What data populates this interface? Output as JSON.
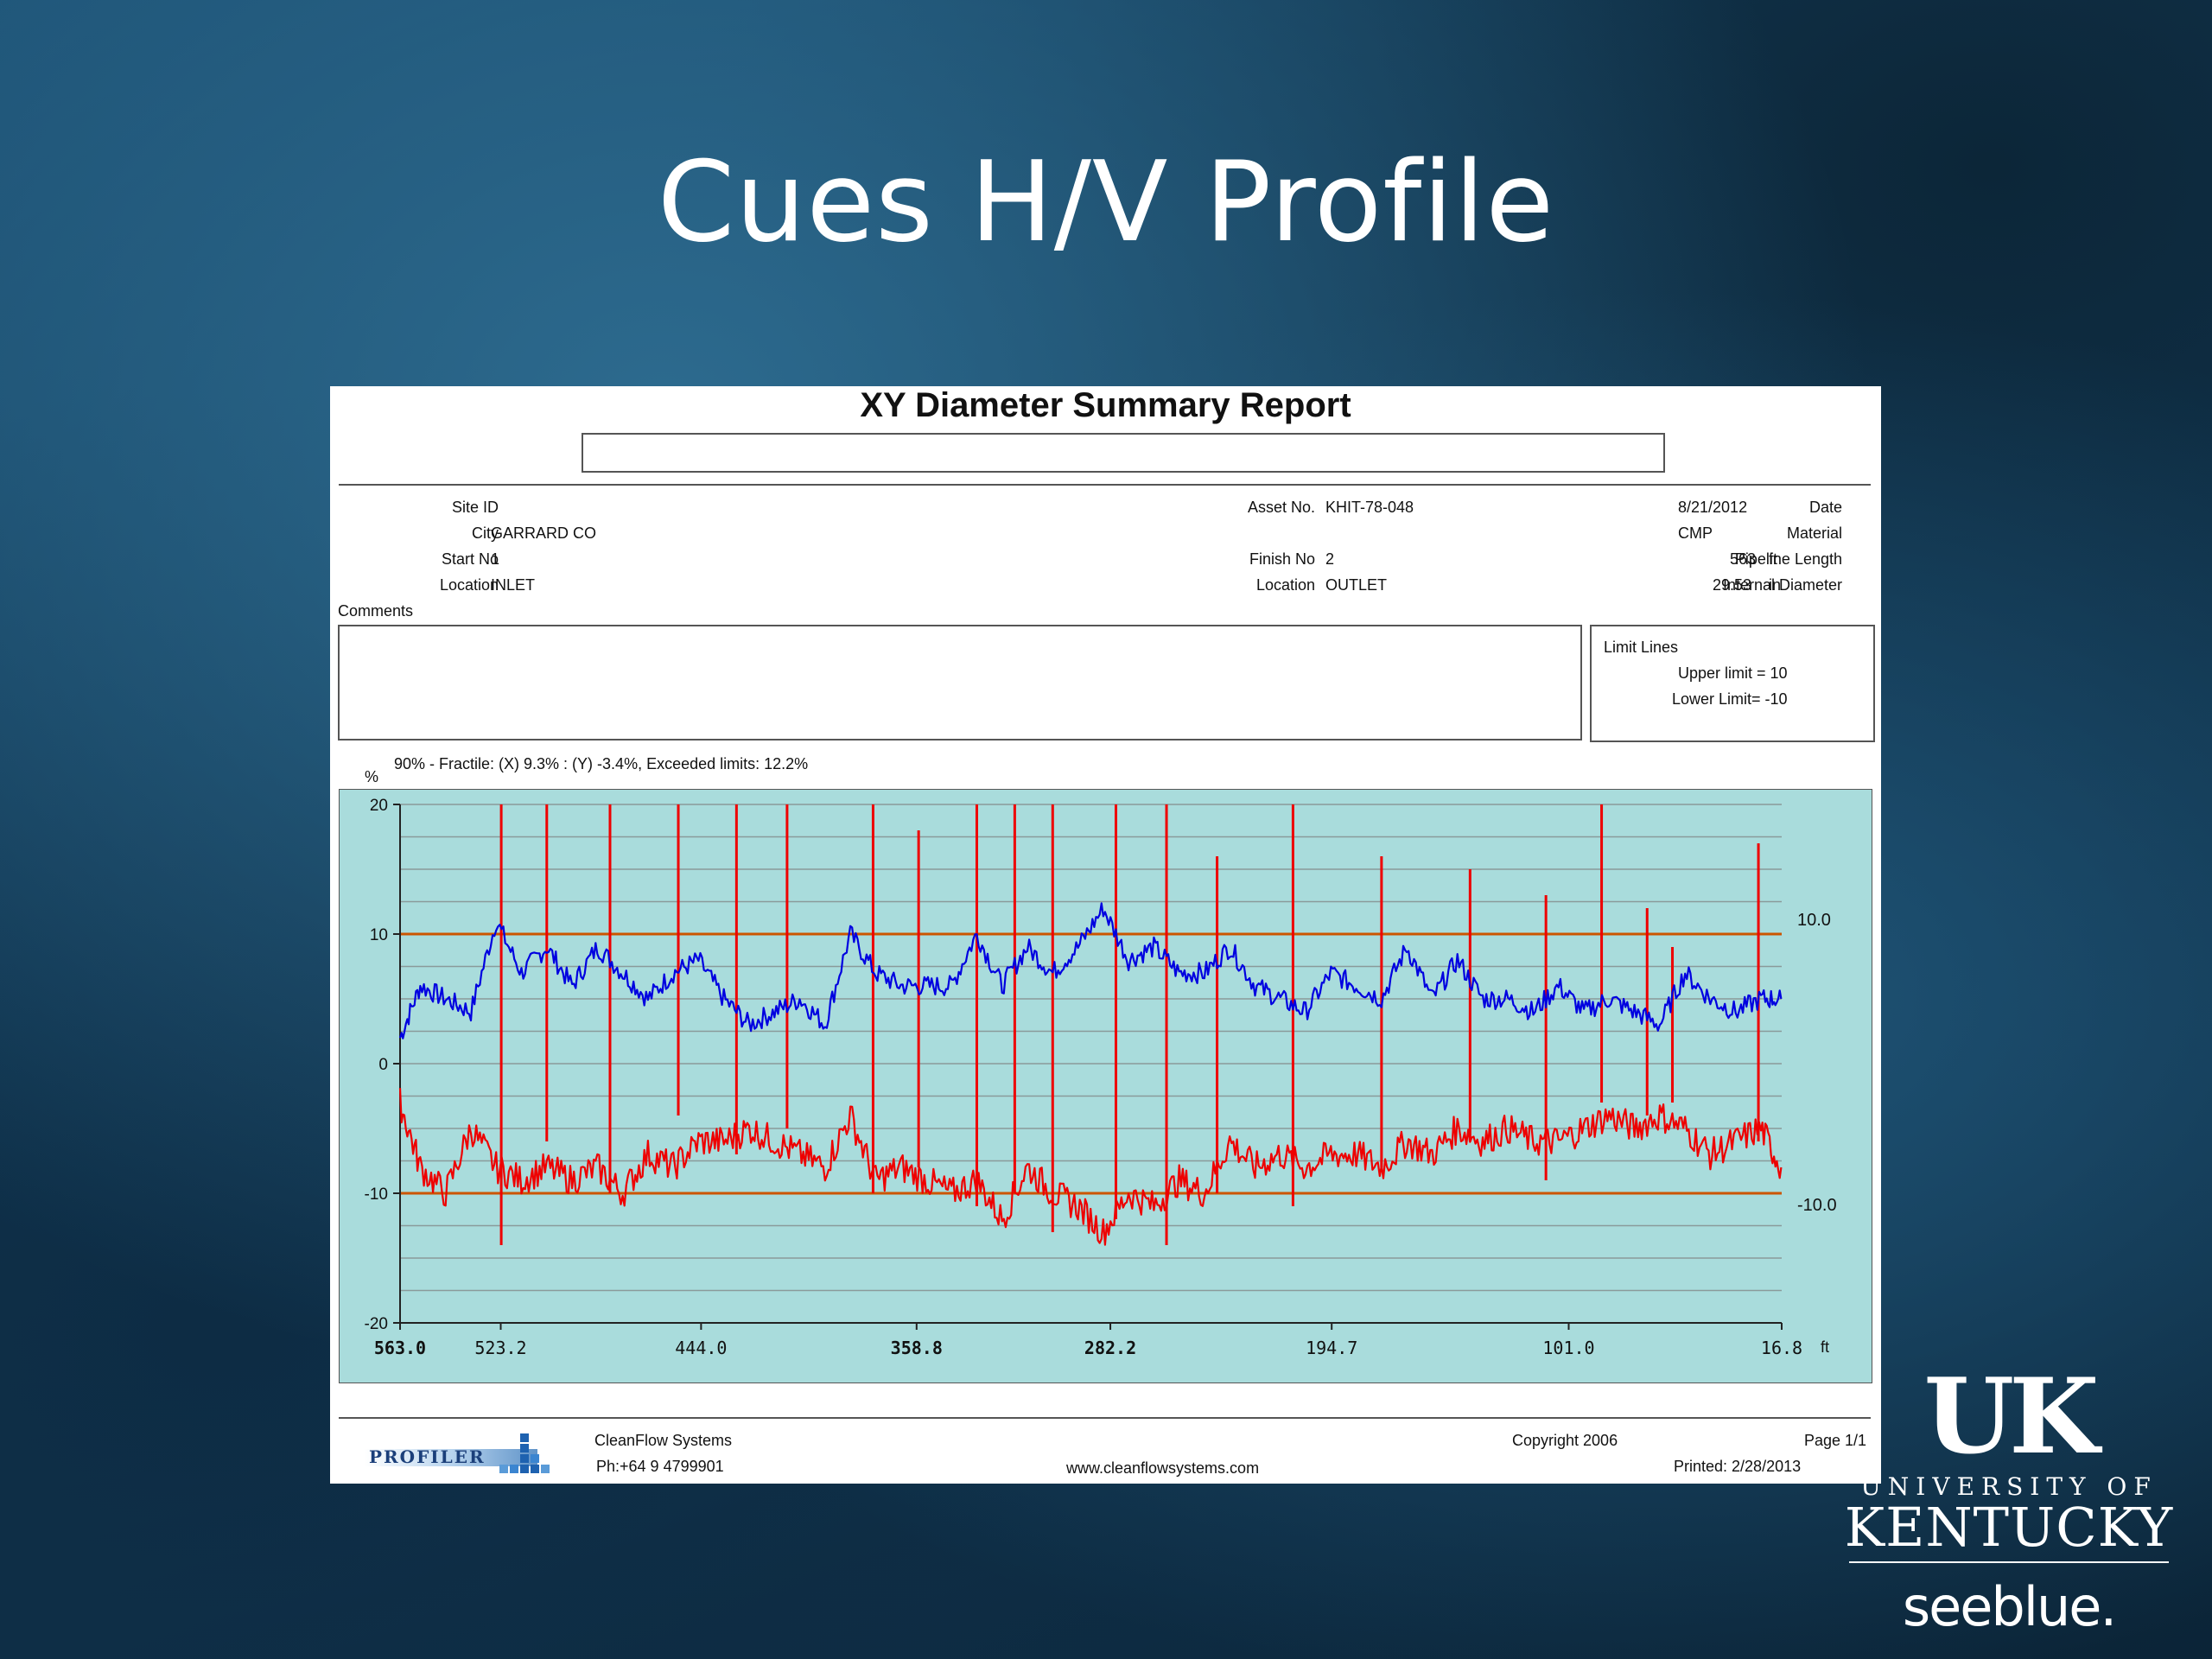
{
  "slide": {
    "title": "Cues H/V Profile"
  },
  "report": {
    "title": "XY Diameter Summary Report",
    "fields": {
      "site_id_label": "Site ID",
      "site_id": "",
      "city_label": "City",
      "city": "GARRARD CO",
      "start_no_label": "Start No",
      "start_no": "1",
      "start_location_label": "Location",
      "start_location": "INLET",
      "asset_no_label": "Asset No.",
      "asset_no": "KHIT-78-048",
      "finish_no_label": "Finish No",
      "finish_no": "2",
      "finish_location_label": "Location",
      "finish_location": "OUTLET",
      "date_label": "Date",
      "date": "8/21/2012",
      "material_label": "Material",
      "material": "CMP",
      "pipeline_length_label": "Pipeline Length",
      "pipeline_length": "563",
      "pipeline_length_unit": "ft",
      "internal_diameter_label": "Internal Diameter",
      "internal_diameter": "29.53",
      "internal_diameter_unit": "in"
    },
    "comments_label": "Comments",
    "limit_lines": {
      "title": "Limit Lines",
      "upper_text": "Upper limit =  10",
      "lower_text": "Lower Limit=  -10"
    },
    "stats_line": "90% - Fractile:  (X) 9.3% : (Y) -3.4%,    Exceeded limits: 12.2%",
    "y_unit": "%",
    "footer": {
      "company": "CleanFlow Systems",
      "phone": "Ph:+64 9 4799901",
      "website": "www.cleanflowsystems.com",
      "copyright": "Copyright 2006",
      "page": "Page 1/1",
      "printed": "Printed:  2/28/2013",
      "logo_text": "PROFILER"
    }
  },
  "logo": {
    "mark": "UK",
    "university": "UNIVERSITY OF",
    "state": "KENTUCKY",
    "tagline": "seeblue."
  },
  "colors": {
    "plot_bg": "#a9dcdc",
    "series_x": "#0000e0",
    "series_y": "#ee0000",
    "limit_line": "#cc5500"
  },
  "chart_data": {
    "type": "line",
    "xlabel": "ft",
    "ylabel": "%",
    "x_reversed": true,
    "xlim": [
      563.0,
      16.8
    ],
    "ylim": [
      -20,
      20
    ],
    "x_tick_labels": [
      "563.0",
      "523.2",
      "444.0",
      "358.8",
      "282.2",
      "194.7",
      "101.0",
      "16.8"
    ],
    "x_tick_values": [
      563.0,
      523.2,
      444.0,
      358.8,
      282.2,
      194.7,
      101.0,
      16.8
    ],
    "y_tick_labels": [
      "20",
      "10",
      "0",
      "-10",
      "-20"
    ],
    "y_tick_values": [
      20,
      10,
      0,
      -10,
      -20
    ],
    "right_tick_labels": [
      "10.0",
      "-10.0"
    ],
    "right_tick_values": [
      10,
      -10
    ],
    "limit_lines": [
      10,
      -10
    ],
    "grid": true,
    "series": [
      {
        "color": "#0000e0",
        "x": [
          563,
          555,
          545,
          535,
          525,
          515,
          505,
          495,
          485,
          475,
          465,
          455,
          445,
          435,
          425,
          415,
          405,
          395,
          385,
          375,
          365,
          355,
          345,
          335,
          325,
          315,
          305,
          295,
          285,
          275,
          265,
          255,
          245,
          235,
          225,
          215,
          205,
          195,
          185,
          175,
          165,
          155,
          145,
          135,
          125,
          115,
          105,
          95,
          85,
          75,
          65,
          55,
          45,
          35,
          25,
          17
        ],
        "values": [
          2,
          6,
          5,
          4,
          11,
          7,
          9,
          6,
          9,
          7,
          5,
          7,
          8,
          5,
          3,
          4,
          5,
          3,
          10,
          7,
          6,
          6,
          6,
          10,
          6,
          9,
          7,
          9,
          12,
          8,
          9,
          7,
          7,
          9,
          6,
          5,
          4,
          7,
          6,
          5,
          9,
          5,
          8,
          5,
          5,
          4,
          6,
          4,
          5,
          4,
          3,
          7,
          5,
          4,
          5,
          5
        ]
      },
      {
        "color": "#ee0000",
        "x": [
          563,
          555,
          545,
          535,
          525,
          515,
          505,
          495,
          485,
          475,
          465,
          455,
          445,
          435,
          425,
          415,
          405,
          395,
          385,
          375,
          365,
          355,
          345,
          335,
          325,
          315,
          305,
          295,
          285,
          275,
          265,
          255,
          245,
          235,
          225,
          215,
          205,
          195,
          185,
          175,
          165,
          155,
          145,
          135,
          125,
          115,
          105,
          95,
          85,
          75,
          65,
          55,
          45,
          35,
          25,
          17
        ],
        "values": [
          -3,
          -8,
          -10,
          -5,
          -8,
          -9,
          -8,
          -9,
          -8,
          -10,
          -7,
          -8,
          -6,
          -6,
          -5,
          -6,
          -7,
          -8,
          -4,
          -9,
          -8,
          -9,
          -10,
          -9,
          -12,
          -8,
          -10,
          -11,
          -13,
          -10,
          -11,
          -9,
          -10,
          -6,
          -8,
          -7,
          -8,
          -7,
          -7,
          -8,
          -6,
          -7,
          -5,
          -6,
          -5,
          -6,
          -6,
          -5,
          -4,
          -5,
          -4,
          -5,
          -7,
          -6,
          -5,
          -8
        ]
      }
    ],
    "spikes": {
      "x": [
        523,
        505,
        480,
        453,
        430,
        410,
        376,
        358,
        335,
        320,
        305,
        280,
        260,
        240,
        210,
        175,
        140,
        110,
        88,
        70,
        60,
        26
      ],
      "y_top": [
        20,
        20,
        20,
        20,
        20,
        20,
        20,
        18,
        20,
        20,
        20,
        20,
        20,
        16,
        20,
        16,
        15,
        13,
        20,
        12,
        9,
        17
      ],
      "y_bottom": [
        -14,
        -6,
        -10,
        -4,
        -7,
        -5,
        -10,
        -8,
        -11,
        -10,
        -13,
        -12,
        -14,
        -10,
        -11,
        -8,
        -6,
        -9,
        -3,
        -4,
        -3,
        -6
      ]
    }
  }
}
